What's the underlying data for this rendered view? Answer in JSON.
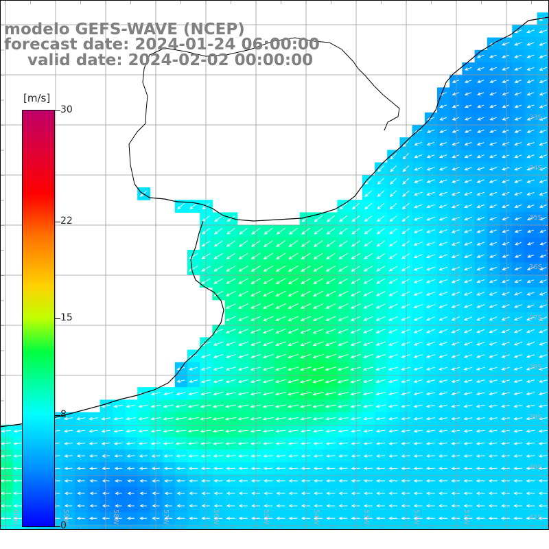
{
  "title": {
    "model": "modelo GEFS-WAVE (NCEP)",
    "forecast": "forecast date: 2024-01-24 06:00:00",
    "valid": "valid date: 2024-02-02 00:00:00"
  },
  "colorbar": {
    "unit": "[m/s]",
    "min": 0,
    "max": 30,
    "ticks": [
      {
        "value": 30,
        "label": "30"
      },
      {
        "value": 22,
        "label": "22"
      },
      {
        "value": 15,
        "label": "15"
      },
      {
        "value": 8,
        "label": "8"
      },
      {
        "value": 0,
        "label": "0"
      }
    ],
    "colors": [
      "#0000ff",
      "#00a0ff",
      "#00ffff",
      "#00ff00",
      "#ffff00",
      "#ff8000",
      "#ff0000",
      "#c0006a"
    ]
  },
  "map": {
    "lat_labels": [
      "33S",
      "34S",
      "35S",
      "36S",
      "37S",
      "38S",
      "39S",
      "40S",
      "41S"
    ],
    "lon_labels": [
      "60W",
      "59W",
      "58W",
      "57W",
      "56W",
      "55W",
      "54W",
      "53W",
      "52W",
      "51W"
    ],
    "land_color": "#ffffff",
    "grid_color": "#999999",
    "coast_color": "#000000",
    "vector_color": "#ffffff"
  }
}
